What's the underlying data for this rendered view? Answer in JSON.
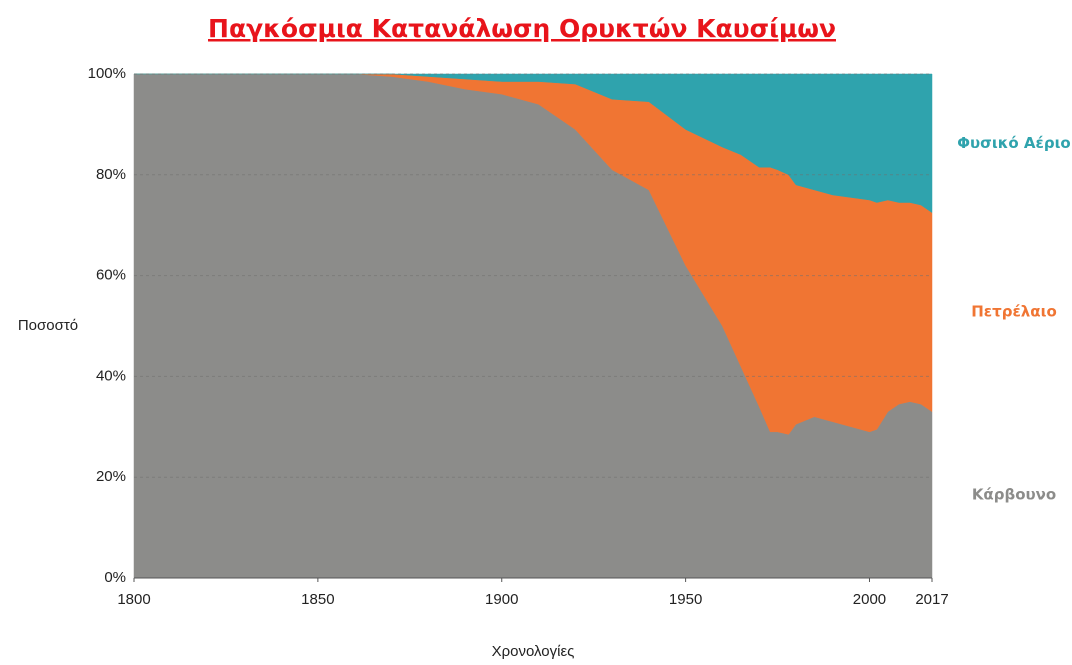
{
  "chart_data": {
    "type": "stacked_area",
    "title": "Παγκόσμια Κατανάλωση Ορυκτών Καυσίμων",
    "x_label": "Χρονολογίες",
    "y_label": "Ποσοστό",
    "x": [
      1800,
      1850,
      1860,
      1870,
      1880,
      1890,
      1900,
      1910,
      1920,
      1930,
      1940,
      1950,
      1960,
      1965,
      1970,
      1973,
      1975,
      1978,
      1980,
      1985,
      1990,
      1995,
      2000,
      2002,
      2005,
      2008,
      2011,
      2014,
      2017
    ],
    "series": [
      {
        "name": "Κάρβουνο",
        "color": "#8c8c8a",
        "values": [
          100,
          100,
          100,
          99.5,
          98.5,
          97,
          96,
          94,
          89,
          81,
          77,
          62,
          50,
          42,
          34,
          29,
          29,
          28.5,
          30.5,
          32,
          31,
          30,
          29,
          29.5,
          33,
          34.5,
          35,
          34.5,
          33
        ]
      },
      {
        "name": "Πετρέλαιο",
        "color": "#f07533",
        "values": [
          0,
          0,
          0,
          0.5,
          1,
          2,
          2.5,
          4.5,
          9,
          14,
          17.5,
          27,
          35.5,
          42,
          47.5,
          52.5,
          52,
          51.5,
          47.5,
          45,
          45,
          45.5,
          46,
          45,
          42,
          40,
          39.5,
          39.5,
          39.5
        ]
      },
      {
        "name": "Φυσικό Αέριο",
        "color": "#2fa3ad",
        "values": [
          0,
          0,
          0,
          0,
          0.5,
          1,
          1.5,
          1.5,
          2,
          5,
          5.5,
          11,
          14.5,
          16,
          18.5,
          18.5,
          19,
          20,
          22,
          23,
          24,
          24.5,
          25,
          25.5,
          25,
          25.5,
          25.5,
          26,
          27.5
        ]
      }
    ],
    "xlim": [
      1800,
      2017
    ],
    "xticks": [
      1800,
      1850,
      1900,
      1950,
      2000,
      2017
    ],
    "ylim": [
      0,
      100
    ],
    "yticks": [
      {
        "value": 0,
        "label": "0%"
      },
      {
        "value": 20,
        "label": "20%"
      },
      {
        "value": 40,
        "label": "40%"
      },
      {
        "value": 60,
        "label": "60%"
      },
      {
        "value": 80,
        "label": "80%"
      },
      {
        "value": 100,
        "label": "100%"
      }
    ],
    "grid": true
  }
}
